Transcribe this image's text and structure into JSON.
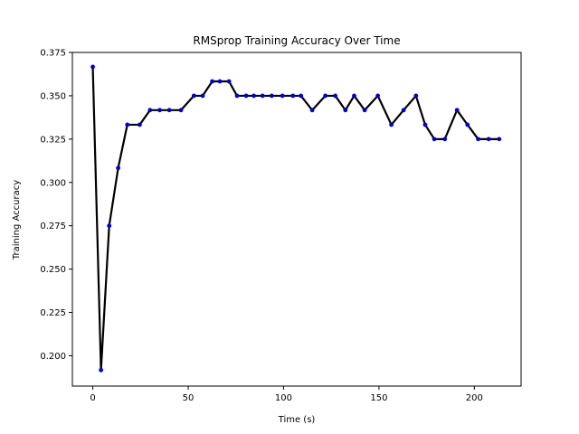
{
  "chart_data": {
    "type": "line",
    "title": "RMSprop Training Accuracy Over Time",
    "xlabel": "Time (s)",
    "ylabel": "Training Accuracy",
    "xlim": [
      -10.7,
      224.5
    ],
    "ylim": [
      0.1825,
      0.375
    ],
    "xticks": [
      0,
      50,
      100,
      150,
      200
    ],
    "xtick_labels": [
      "0",
      "50",
      "100",
      "150",
      "200"
    ],
    "yticks": [
      0.2,
      0.225,
      0.25,
      0.275,
      0.3,
      0.325,
      0.35,
      0.375
    ],
    "ytick_labels": [
      "0.200",
      "0.225",
      "0.250",
      "0.275",
      "0.300",
      "0.325",
      "0.350",
      "0.375"
    ],
    "grid": false,
    "line_color": "#000000",
    "marker_color": "#0000cc",
    "series": [
      {
        "x": [
          0,
          4.3,
          8.6,
          13.3,
          18.1,
          24.6,
          30.0,
          35.1,
          40.1,
          46.2,
          53.0,
          57.6,
          62.6,
          66.6,
          71.4,
          75.6,
          80.4,
          84.4,
          89.0,
          93.8,
          99.4,
          104.9,
          109.1,
          115.0,
          121.9,
          127.1,
          132.4,
          137.0,
          142.5,
          149.4,
          156.5,
          162.9,
          169.4,
          174.2,
          179.0,
          184.5,
          190.9,
          196.4,
          202.0,
          207.5,
          213.0
        ],
        "values": [
          0.3667,
          0.1917,
          0.275,
          0.3083,
          0.3333,
          0.3333,
          0.3417,
          0.3417,
          0.3417,
          0.3417,
          0.35,
          0.35,
          0.3583,
          0.3583,
          0.3583,
          0.35,
          0.35,
          0.35,
          0.35,
          0.35,
          0.35,
          0.35,
          0.35,
          0.3417,
          0.35,
          0.35,
          0.3417,
          0.35,
          0.3417,
          0.35,
          0.3333,
          0.3417,
          0.35,
          0.3333,
          0.325,
          0.325,
          0.3417,
          0.3333,
          0.325,
          0.325,
          0.325
        ]
      }
    ]
  }
}
